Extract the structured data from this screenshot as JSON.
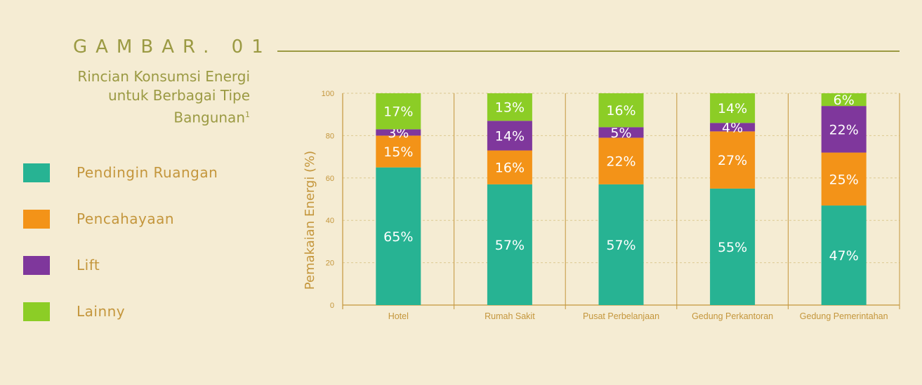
{
  "figure": {
    "label": "GAMBAR. 01",
    "title_lines": [
      "Rincian Konsumsi Energi",
      "untuk Berbagai Tipe",
      "Bangunan"
    ],
    "footnote_mark": "1"
  },
  "legend": [
    {
      "label": "Pendingin Ruangan",
      "color": "#27b393"
    },
    {
      "label": "Pencahayaan",
      "color": "#f39318"
    },
    {
      "label": "Lift",
      "color": "#7f379c"
    },
    {
      "label": "Lainny",
      "color": "#8ccd26"
    }
  ],
  "chart_data": {
    "type": "bar",
    "stacked": true,
    "categories": [
      "Hotel",
      "Rumah Sakit",
      "Pusat Perbelanjaan",
      "Gedung Perkantoran",
      "Gedung Pemerintahan"
    ],
    "series": [
      {
        "name": "Pendingin Ruangan",
        "color": "#27b393",
        "values": [
          65,
          57,
          57,
          55,
          47
        ]
      },
      {
        "name": "Pencahayaan",
        "color": "#f39318",
        "values": [
          15,
          16,
          22,
          27,
          25
        ]
      },
      {
        "name": "Lift",
        "color": "#7f379c",
        "values": [
          3,
          14,
          5,
          4,
          22
        ]
      },
      {
        "name": "Lainny",
        "color": "#8ccd26",
        "values": [
          17,
          13,
          16,
          14,
          6
        ]
      }
    ],
    "data_label_suffix": "%",
    "ylabel": "Pemakaian Energi (%)",
    "xlabel": "",
    "ylim": [
      0,
      100
    ],
    "yticks": [
      0,
      20,
      40,
      60,
      80,
      100
    ],
    "grid": true,
    "colors": {
      "axis": "#c4963c",
      "grid": "#dcc992",
      "label_text": "#ffffff"
    }
  }
}
